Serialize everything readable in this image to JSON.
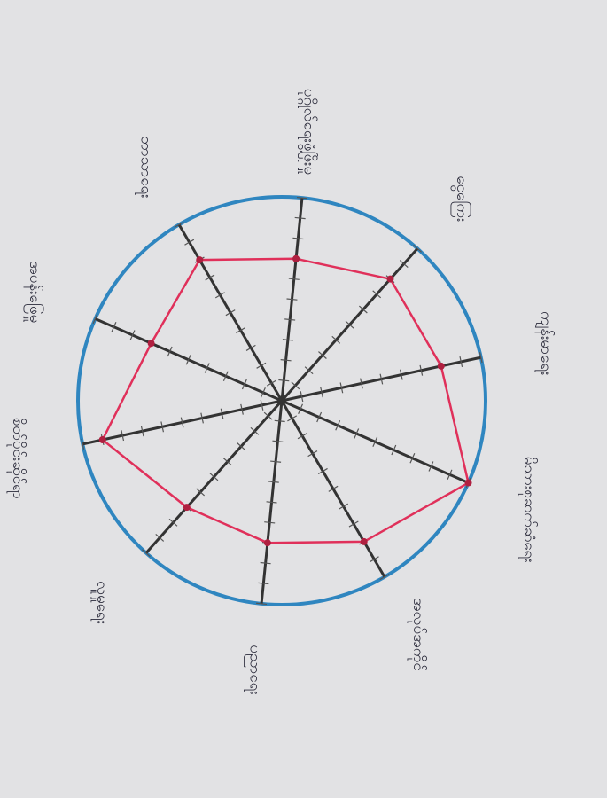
{
  "chart_data": {
    "type": "radar",
    "categories": [
      "ပုဂ္ဂိုလ်ရေးဖွံ့ဖြိုးမှု",
      "ငွေကြေး",
      "ကျန်းမာရေး",
      "မိသားစုဆက်ဆံရေး",
      "အလုပ်အကိုင်",
      "ပညာရေး",
      "လူမှုရေး",
      "စိတ်ပိုင်းဆိုင်ရာ",
      "အပန်းဖြေမှု",
      "ဘာသာရေး"
    ],
    "values": [
      7,
      8,
      8,
      10,
      8,
      7,
      7,
      9,
      7,
      8
    ],
    "color": "#e0305a",
    "rlim": [
      0,
      10
    ],
    "rticks": [
      1,
      2,
      3,
      4,
      5,
      6,
      7,
      8,
      9,
      10
    ],
    "outline_color": "#2f86c0"
  }
}
